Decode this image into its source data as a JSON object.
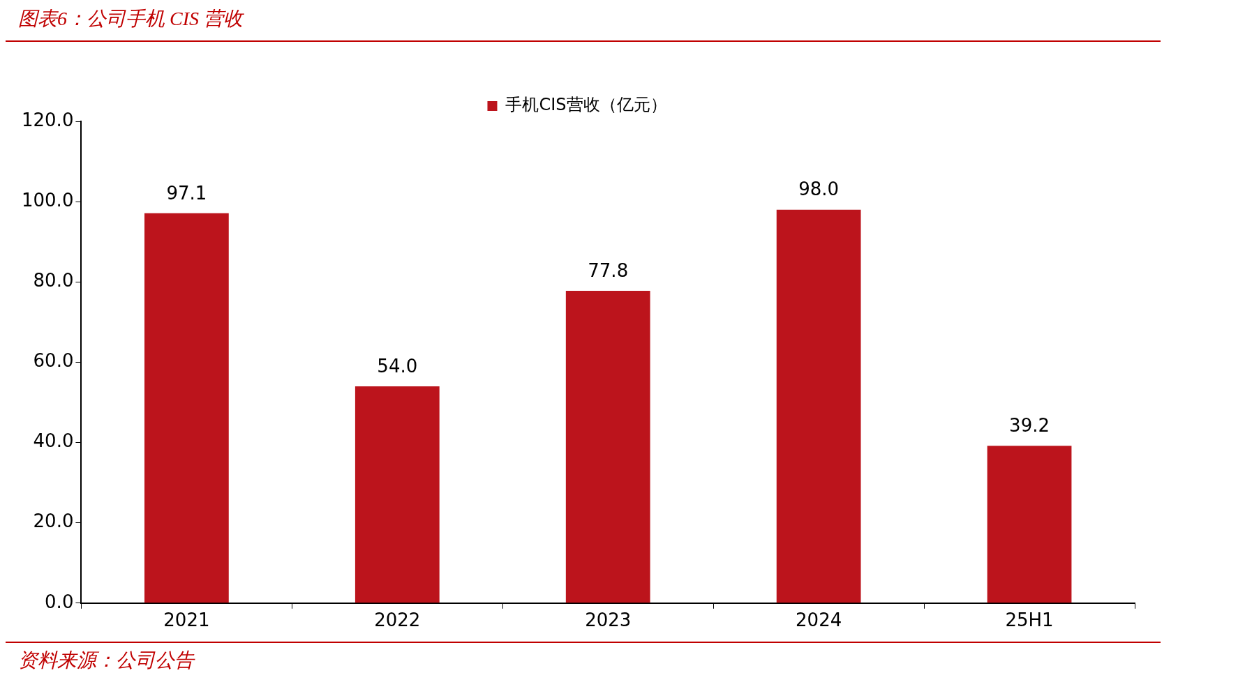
{
  "chart_data": {
    "type": "bar",
    "title": "图表6：公司手机 CIS 营收",
    "categories": [
      "2021",
      "2022",
      "2023",
      "2024",
      "25H1"
    ],
    "series": [
      {
        "name": "手机CIS营收（亿元）",
        "color": "#bc141c",
        "values": [
          97.1,
          54.0,
          77.8,
          98.0,
          39.2
        ],
        "value_labels": [
          "97.1",
          "54.0",
          "77.8",
          "98.0",
          "39.2"
        ]
      }
    ],
    "ylim": [
      0,
      120
    ],
    "yticks": [
      {
        "value": 0,
        "label": "0.0"
      },
      {
        "value": 20,
        "label": "20.0"
      },
      {
        "value": 40,
        "label": "40.0"
      },
      {
        "value": 60,
        "label": "60.0"
      },
      {
        "value": 80,
        "label": "80.0"
      },
      {
        "value": 100,
        "label": "100.0"
      },
      {
        "value": 120,
        "label": "120.0"
      }
    ],
    "legend": "top",
    "grid": false,
    "annotations": [
      "资料来源：公司公告"
    ]
  }
}
